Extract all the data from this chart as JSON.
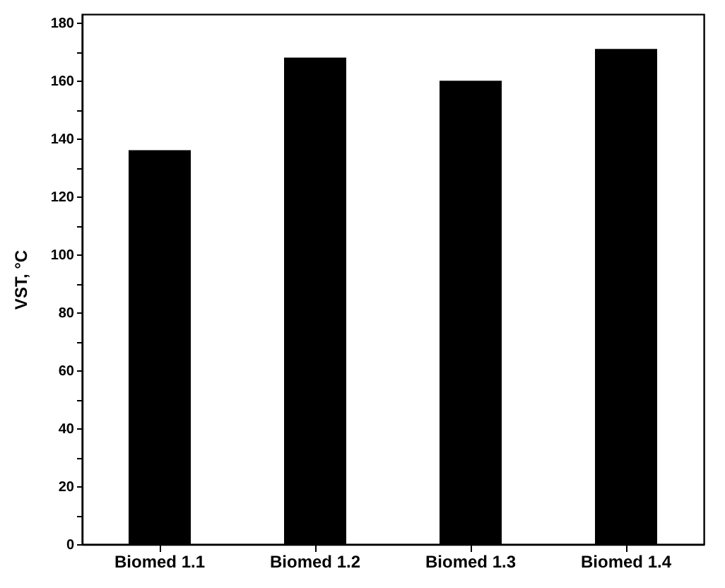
{
  "chart_data": {
    "type": "bar",
    "ylabel": "VST, °C",
    "categories": [
      "Biomed  1.1",
      "Biomed  1.2",
      "Biomed  1.3",
      "Biomed  1.4"
    ],
    "values": [
      136,
      168,
      160,
      171
    ],
    "color": "#000000",
    "ylim": [
      0,
      183
    ],
    "yticks": [
      0,
      {
        "value": 10,
        "label": null
      },
      20,
      {
        "value": 30,
        "label": null
      },
      40,
      {
        "value": 50,
        "label": null
      },
      60,
      {
        "value": 70,
        "label": null
      },
      80,
      {
        "value": 90,
        "label": null
      },
      100,
      {
        "value": 110,
        "label": null
      },
      120,
      {
        "value": 130,
        "label": null
      },
      140,
      {
        "value": 150,
        "label": null
      },
      160,
      {
        "value": 170,
        "label": null
      },
      180
    ]
  }
}
